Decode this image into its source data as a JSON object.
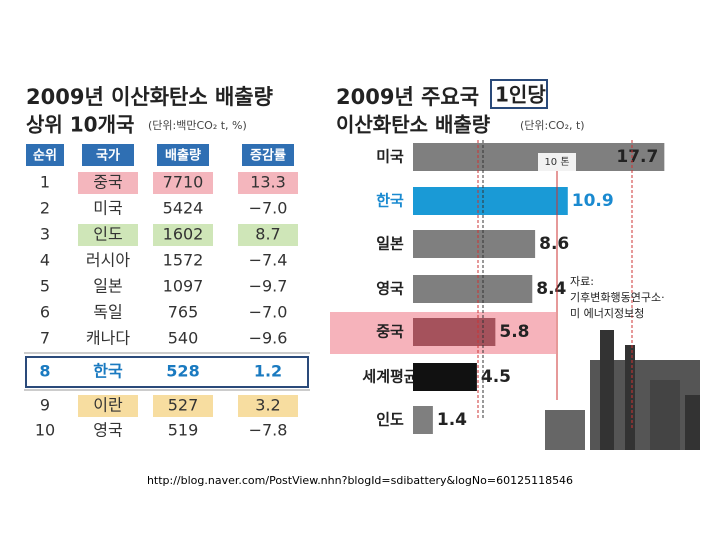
{
  "table": {
    "title": "2009년 이산화탄소 배출량",
    "subtitle": "상위 10개국",
    "unit": "(단위:백만CO₂ t, %)",
    "headers": [
      "순위",
      "국가",
      "배출량",
      "증감률"
    ],
    "rows": [
      [
        "1",
        "중국",
        "7710",
        "13.3"
      ],
      [
        "2",
        "미국",
        "5424",
        "−7.0"
      ],
      [
        "3",
        "인도",
        "1602",
        "8.7"
      ],
      [
        "4",
        "러시아",
        "1572",
        "−7.4"
      ],
      [
        "5",
        "일본",
        "1097",
        "−9.7"
      ],
      [
        "6",
        "독일",
        "765",
        "−7.0"
      ],
      [
        "7",
        "캐나다",
        "540",
        "−9.6"
      ],
      [
        "8",
        "한국",
        "528",
        "1.2"
      ],
      [
        "9",
        "이란",
        "527",
        "3.2"
      ],
      [
        "10",
        "영국",
        "519",
        "−7.8"
      ]
    ]
  },
  "chart_data": {
    "type": "bar",
    "title_line1": "2009년 주요국",
    "title_highlight": "1인당",
    "title_line2": "이산화탄소 배출량",
    "unit": "(단위:CO₂, t)",
    "categories": [
      "미국",
      "한국",
      "일본",
      "영국",
      "중국",
      "세계평균",
      "인도"
    ],
    "values": [
      17.7,
      10.9,
      8.6,
      8.4,
      5.8,
      4.5,
      1.4
    ],
    "colors": [
      "#7f7f7f",
      "#1a9ad6",
      "#7f7f7f",
      "#7f7f7f",
      "#a5525c",
      "#111111",
      "#7f7f7f"
    ],
    "annotation": "10 톤",
    "source": "자료:\n기후변화행동연구소·\n미 에너지정보청"
  },
  "caption": "http://blog.naver.com/PostView.nhn?blogId=sdibattery&logNo=60125118546"
}
